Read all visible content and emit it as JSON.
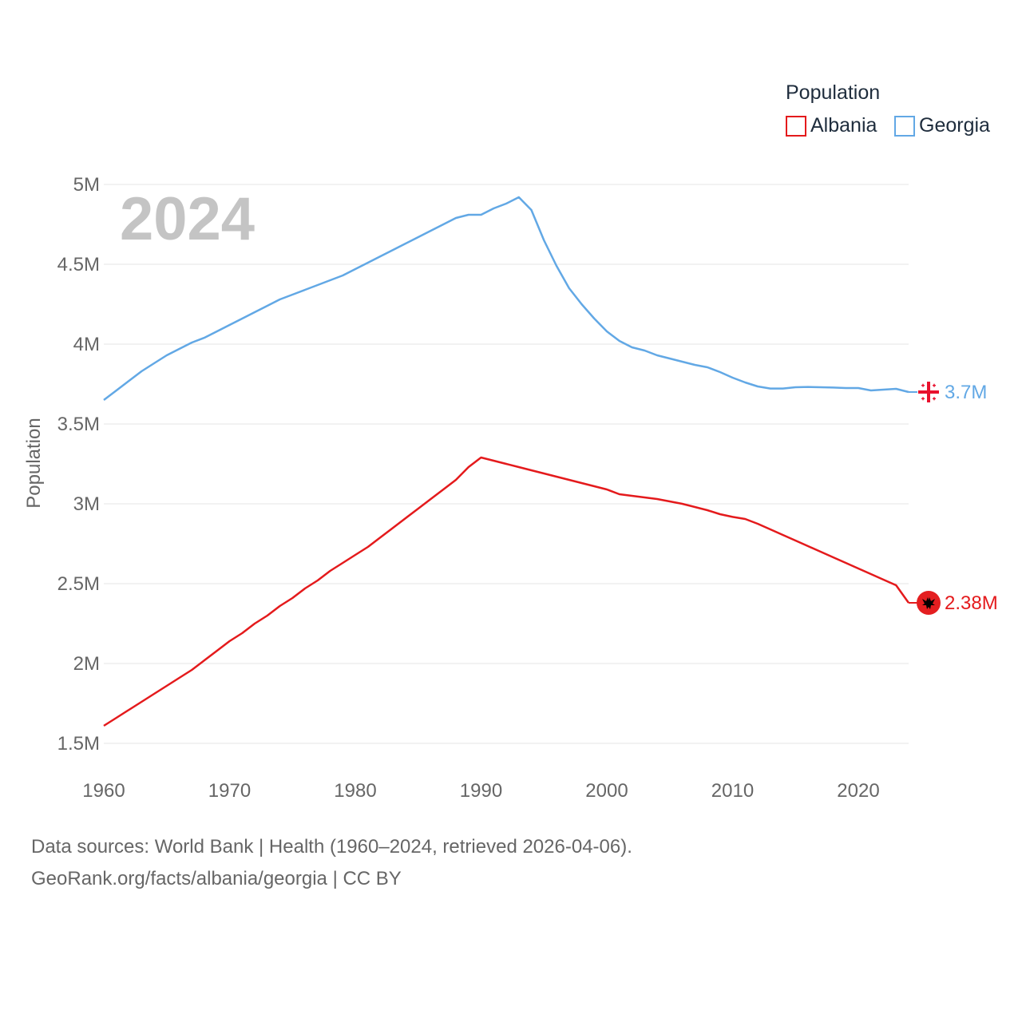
{
  "chart_data": {
    "type": "line",
    "title": "",
    "big_year": "2024",
    "ylabel": "Population",
    "xlabel": "",
    "xlim": [
      1960,
      2024
    ],
    "ylim": [
      1.5,
      5.0
    ],
    "y_unit": "millions",
    "x_ticks": [
      1960,
      1970,
      1980,
      1990,
      2000,
      2010,
      2020
    ],
    "x_tick_labels": [
      "1960",
      "1970",
      "1980",
      "1990",
      "2000",
      "2010",
      "2020"
    ],
    "y_ticks": [
      1.5,
      2,
      2.5,
      3,
      3.5,
      4,
      4.5,
      5
    ],
    "y_tick_labels": [
      "1.5M",
      "2M",
      "2.5M",
      "3M",
      "3.5M",
      "4M",
      "4.5M",
      "5M"
    ],
    "grid": true,
    "legend": {
      "title": "Population",
      "position": "top-right",
      "entries": [
        "Albania",
        "Georgia"
      ]
    },
    "series": [
      {
        "name": "Albania",
        "color": "#e41a1c",
        "flag": "albania-flag",
        "end_label": "2.38M",
        "x": [
          1960,
          1961,
          1962,
          1963,
          1964,
          1965,
          1966,
          1967,
          1968,
          1969,
          1970,
          1971,
          1972,
          1973,
          1974,
          1975,
          1976,
          1977,
          1978,
          1979,
          1980,
          1981,
          1982,
          1983,
          1984,
          1985,
          1986,
          1987,
          1988,
          1989,
          1990,
          1991,
          1992,
          1993,
          1994,
          1995,
          1996,
          1997,
          1998,
          1999,
          2000,
          2001,
          2002,
          2003,
          2004,
          2005,
          2006,
          2007,
          2008,
          2009,
          2010,
          2011,
          2012,
          2013,
          2014,
          2015,
          2016,
          2017,
          2018,
          2019,
          2020,
          2021,
          2022,
          2023,
          2024
        ],
        "values": [
          1.61,
          1.66,
          1.71,
          1.76,
          1.81,
          1.86,
          1.91,
          1.96,
          2.02,
          2.08,
          2.14,
          2.19,
          2.25,
          2.3,
          2.36,
          2.41,
          2.47,
          2.52,
          2.58,
          2.63,
          2.68,
          2.73,
          2.79,
          2.85,
          2.91,
          2.97,
          3.03,
          3.09,
          3.15,
          3.23,
          3.29,
          3.27,
          3.25,
          3.23,
          3.21,
          3.19,
          3.17,
          3.15,
          3.13,
          3.11,
          3.09,
          3.06,
          3.05,
          3.04,
          3.03,
          3.015,
          3.0,
          2.98,
          2.96,
          2.935,
          2.918,
          2.905,
          2.875,
          2.84,
          2.805,
          2.77,
          2.735,
          2.7,
          2.665,
          2.63,
          2.595,
          2.56,
          2.525,
          2.49,
          2.38
        ]
      },
      {
        "name": "Georgia",
        "color": "#62a8e5",
        "flag": "georgia-flag",
        "end_label": "3.7M",
        "x": [
          1960,
          1961,
          1962,
          1963,
          1964,
          1965,
          1966,
          1967,
          1968,
          1969,
          1970,
          1971,
          1972,
          1973,
          1974,
          1975,
          1976,
          1977,
          1978,
          1979,
          1980,
          1981,
          1982,
          1983,
          1984,
          1985,
          1986,
          1987,
          1988,
          1989,
          1990,
          1991,
          1992,
          1993,
          1994,
          1995,
          1996,
          1997,
          1998,
          1999,
          2000,
          2001,
          2002,
          2003,
          2004,
          2005,
          2006,
          2007,
          2008,
          2009,
          2010,
          2011,
          2012,
          2013,
          2014,
          2015,
          2016,
          2017,
          2018,
          2019,
          2020,
          2021,
          2022,
          2023,
          2024
        ],
        "values": [
          3.65,
          3.71,
          3.77,
          3.83,
          3.88,
          3.93,
          3.97,
          4.01,
          4.04,
          4.08,
          4.12,
          4.16,
          4.2,
          4.24,
          4.28,
          4.31,
          4.34,
          4.37,
          4.4,
          4.43,
          4.47,
          4.51,
          4.55,
          4.59,
          4.63,
          4.67,
          4.71,
          4.75,
          4.79,
          4.81,
          4.81,
          4.85,
          4.88,
          4.92,
          4.84,
          4.65,
          4.49,
          4.35,
          4.25,
          4.16,
          4.08,
          4.02,
          3.98,
          3.96,
          3.93,
          3.91,
          3.89,
          3.87,
          3.855,
          3.825,
          3.79,
          3.76,
          3.735,
          3.722,
          3.722,
          3.73,
          3.732,
          3.73,
          3.728,
          3.725,
          3.725,
          3.71,
          3.715,
          3.72,
          3.7
        ]
      }
    ]
  },
  "footer": {
    "sources": "Data sources: World Bank | Health (1960–2024, retrieved 2026-04-06).",
    "link": "GeoRank.org/facts/albania/georgia | CC BY"
  }
}
